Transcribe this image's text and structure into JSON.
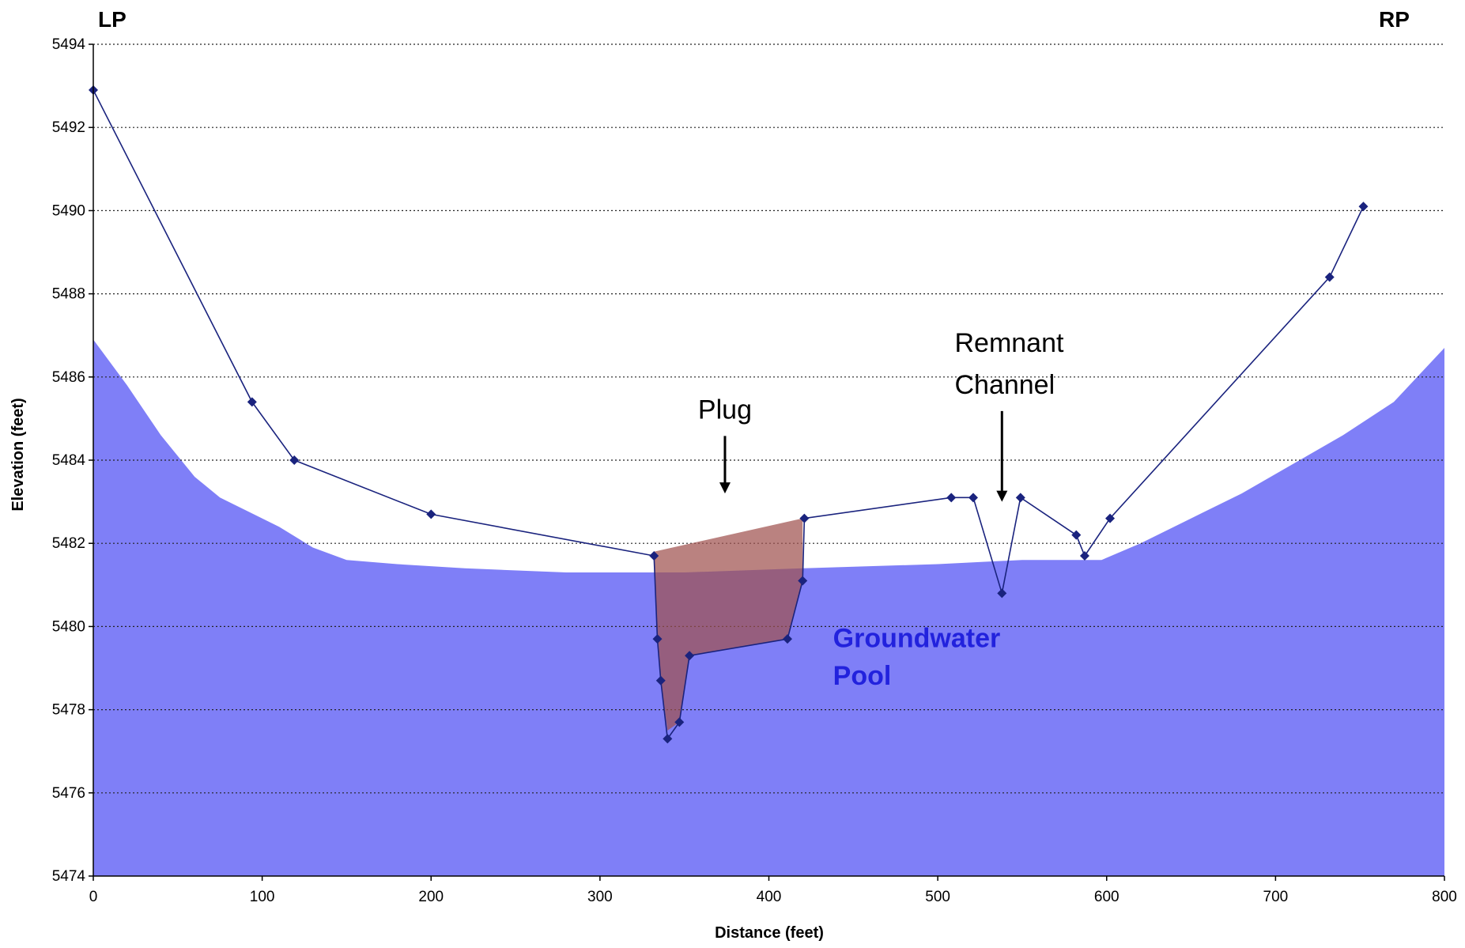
{
  "chart_data": {
    "type": "line",
    "title": "",
    "xlabel": "Distance (feet)",
    "ylabel": "Elevation (feet)",
    "xlim": [
      0,
      800
    ],
    "ylim": [
      5474,
      5494
    ],
    "x_ticks": [
      0,
      100,
      200,
      300,
      400,
      500,
      600,
      700,
      800
    ],
    "x_tick_labels": [
      "0",
      "100",
      "200",
      "300",
      "400",
      "500",
      "600",
      "700",
      "800"
    ],
    "y_ticks": [
      5474,
      5476,
      5478,
      5480,
      5482,
      5484,
      5486,
      5488,
      5490,
      5492,
      5494
    ],
    "y_tick_labels": [
      "5474",
      "5476",
      "5478",
      "5480",
      "5482",
      "5484",
      "5486",
      "5488",
      "5490",
      "5492",
      "5494"
    ],
    "grid": "horizontal dotted",
    "corner_labels": {
      "left": "LP",
      "right": "RP"
    },
    "series": [
      {
        "role": "ground-surface",
        "color": "#1a237e",
        "marker": "diamond",
        "points": [
          [
            0,
            5492.9
          ],
          [
            94,
            5485.4
          ],
          [
            119,
            5484.0
          ],
          [
            200,
            5482.7
          ],
          [
            332,
            5481.7
          ],
          [
            334,
            5479.7
          ],
          [
            336,
            5478.7
          ],
          [
            340,
            5477.3
          ],
          [
            347,
            5477.7
          ],
          [
            353,
            5479.3
          ],
          [
            411,
            5479.7
          ],
          [
            420,
            5481.1
          ],
          [
            421,
            5482.6
          ],
          [
            508,
            5483.1
          ],
          [
            521,
            5483.1
          ],
          [
            538,
            5480.8
          ],
          [
            549,
            5483.1
          ],
          [
            582,
            5482.2
          ],
          [
            587,
            5481.7
          ],
          [
            602,
            5482.6
          ],
          [
            732,
            5488.4
          ],
          [
            752,
            5490.1
          ]
        ]
      },
      {
        "role": "groundwater-pool",
        "color": "#7f7ff7",
        "points": [
          [
            0,
            5486.9
          ],
          [
            20,
            5485.8
          ],
          [
            40,
            5484.6
          ],
          [
            60,
            5483.6
          ],
          [
            75,
            5483.1
          ],
          [
            90,
            5482.8
          ],
          [
            110,
            5482.4
          ],
          [
            130,
            5481.9
          ],
          [
            150,
            5481.6
          ],
          [
            180,
            5481.5
          ],
          [
            220,
            5481.4
          ],
          [
            280,
            5481.3
          ],
          [
            350,
            5481.3
          ],
          [
            420,
            5481.4
          ],
          [
            500,
            5481.5
          ],
          [
            550,
            5481.6
          ],
          [
            597,
            5481.6
          ],
          [
            620,
            5482.0
          ],
          [
            650,
            5482.6
          ],
          [
            680,
            5483.2
          ],
          [
            710,
            5483.9
          ],
          [
            740,
            5484.6
          ],
          [
            770,
            5485.4
          ],
          [
            800,
            5486.7
          ]
        ]
      },
      {
        "role": "plug",
        "color": "#a0524f",
        "points": [
          [
            332,
            5481.8
          ],
          [
            420,
            5482.6
          ],
          [
            420,
            5481.1
          ],
          [
            411,
            5479.7
          ],
          [
            353,
            5479.3
          ],
          [
            347,
            5477.7
          ],
          [
            340,
            5477.5
          ],
          [
            336,
            5478.7
          ],
          [
            334,
            5479.7
          ]
        ]
      }
    ],
    "annotations": [
      {
        "text": "Plug",
        "x": 374,
        "y": 5485.0,
        "arrow_to": [
          374,
          5483.2
        ],
        "color": "#000000"
      },
      {
        "text": "Remnant",
        "x": 510,
        "y": 5486.6,
        "color": "#000000"
      },
      {
        "text": "Channel",
        "x": 510,
        "y": 5485.6,
        "arrow_to": [
          538,
          5483.0
        ],
        "color": "#000000"
      },
      {
        "text": "Groundwater",
        "x": 438,
        "y": 5479.5,
        "color": "#2222dd"
      },
      {
        "text": "Pool",
        "x": 438,
        "y": 5478.6,
        "color": "#2222dd"
      }
    ]
  }
}
